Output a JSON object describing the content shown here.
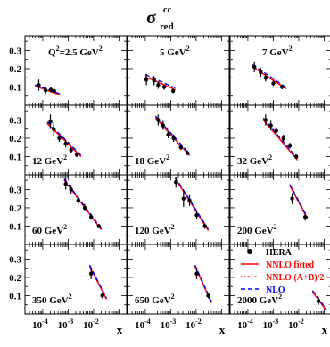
{
  "chart_data": {
    "type": "scatter",
    "title": "σ",
    "title_sup": "cc",
    "title_sub": "red",
    "xlabel": "x",
    "xscale": "log",
    "xlim": [
      2e-05,
      0.2
    ],
    "ylim": [
      0,
      0.38
    ],
    "grid": false,
    "legend_position": "bottom-right panel",
    "yticks": [
      0.1,
      0.2,
      0.3
    ],
    "ytick_labels": [
      "0.1",
      "0.2",
      "0.3"
    ],
    "xtick_labels": [
      {
        "base": "10",
        "exp": "-4",
        "value": 0.0001
      },
      {
        "base": "10",
        "exp": "-3",
        "value": 0.001
      },
      {
        "base": "10",
        "exp": "-2",
        "value": 0.01
      }
    ],
    "legend": [
      {
        "label": "HERA",
        "style": "marker",
        "color": "#000000"
      },
      {
        "label": "NNLO fitted",
        "style": "solid",
        "color": "#ff0000"
      },
      {
        "label": "NNLO (A+B)/2",
        "style": "dotted",
        "color": "#ff0000"
      },
      {
        "label": "NLO",
        "style": "dashed",
        "color": "#0000ff"
      }
    ],
    "panels": [
      {
        "q2_label": "Q",
        "q2_sup": "2",
        "q2_value": "=2.5 GeV",
        "q2_unit_sup": "2",
        "label_pos": "top",
        "points": [
          {
            "x": 7e-05,
            "y": 0.11,
            "e": 0.03
          },
          {
            "x": 0.00013,
            "y": 0.082,
            "e": 0.02
          },
          {
            "x": 0.00021,
            "y": 0.085,
            "e": 0.015
          },
          {
            "x": 0.00028,
            "y": 0.078,
            "e": 0.012
          }
        ],
        "curves": {
          "fitted": [
            [
              5e-05,
              0.105
            ],
            [
              0.0005,
              0.055
            ]
          ],
          "avg": [
            [
              5e-05,
              0.108
            ],
            [
              0.0005,
              0.058
            ]
          ],
          "nlo": [
            [
              5e-05,
              0.112
            ],
            [
              0.0005,
              0.062
            ]
          ]
        }
      },
      {
        "q2_label": "",
        "q2_sup": "",
        "q2_value": "5 GeV",
        "q2_unit_sup": "2",
        "label_pos": "top",
        "points": [
          {
            "x": 0.00011,
            "y": 0.14,
            "e": 0.03
          },
          {
            "x": 0.00022,
            "y": 0.135,
            "e": 0.025
          },
          {
            "x": 0.00032,
            "y": 0.11,
            "e": 0.02
          },
          {
            "x": 0.00055,
            "y": 0.1,
            "e": 0.015
          },
          {
            "x": 0.00125,
            "y": 0.078,
            "e": 0.012
          }
        ],
        "curves": {
          "fitted": [
            [
              0.0001,
              0.155
            ],
            [
              0.0015,
              0.085
            ]
          ],
          "avg": [
            [
              0.0001,
              0.158
            ],
            [
              0.0015,
              0.088
            ]
          ],
          "nlo": [
            [
              0.0001,
              0.168
            ],
            [
              0.0015,
              0.095
            ]
          ]
        }
      },
      {
        "q2_label": "",
        "q2_sup": "",
        "q2_value": "7 GeV",
        "q2_unit_sup": "2",
        "label_pos": "top",
        "points": [
          {
            "x": 0.00018,
            "y": 0.21,
            "e": 0.03
          },
          {
            "x": 0.00032,
            "y": 0.18,
            "e": 0.025
          },
          {
            "x": 0.0005,
            "y": 0.15,
            "e": 0.02
          },
          {
            "x": 0.001,
            "y": 0.12,
            "e": 0.015
          },
          {
            "x": 0.0022,
            "y": 0.1,
            "e": 0.012
          }
        ],
        "curves": {
          "fitted": [
            [
              0.00015,
              0.21
            ],
            [
              0.0032,
              0.09
            ]
          ],
          "avg": [
            [
              0.00015,
              0.213
            ],
            [
              0.0032,
              0.093
            ]
          ],
          "nlo": [
            [
              0.00015,
              0.222
            ],
            [
              0.0032,
              0.098
            ]
          ]
        }
      },
      {
        "q2_label": "",
        "q2_sup": "",
        "q2_value": "12 GeV",
        "q2_unit_sup": "2",
        "label_pos": "bottom",
        "points": [
          {
            "x": 0.0002,
            "y": 0.29,
            "e": 0.04
          },
          {
            "x": 0.00027,
            "y": 0.25,
            "e": 0.035
          },
          {
            "x": 0.00045,
            "y": 0.2,
            "e": 0.02
          },
          {
            "x": 0.0008,
            "y": 0.17,
            "e": 0.02
          },
          {
            "x": 0.0013,
            "y": 0.135,
            "e": 0.015
          },
          {
            "x": 0.0022,
            "y": 0.11,
            "e": 0.012
          }
        ],
        "curves": {
          "fitted": [
            [
              0.00015,
              0.28
            ],
            [
              0.0032,
              0.1
            ]
          ],
          "avg": [
            [
              0.00015,
              0.283
            ],
            [
              0.0032,
              0.102
            ]
          ],
          "nlo": [
            [
              0.00015,
              0.29
            ],
            [
              0.0032,
              0.108
            ]
          ]
        }
      },
      {
        "q2_label": "",
        "q2_sup": "",
        "q2_value": "18 GeV",
        "q2_unit_sup": "2",
        "label_pos": "bottom",
        "points": [
          {
            "x": 0.00032,
            "y": 0.3,
            "e": 0.03
          },
          {
            "x": 0.0005,
            "y": 0.27,
            "e": 0.025
          },
          {
            "x": 0.0008,
            "y": 0.22,
            "e": 0.02
          },
          {
            "x": 0.0013,
            "y": 0.2,
            "e": 0.02
          },
          {
            "x": 0.0025,
            "y": 0.15,
            "e": 0.015
          },
          {
            "x": 0.0045,
            "y": 0.12,
            "e": 0.012
          }
        ],
        "curves": {
          "fitted": [
            [
              0.00025,
              0.31
            ],
            [
              0.0055,
              0.105
            ]
          ],
          "avg": [
            [
              0.00025,
              0.313
            ],
            [
              0.0055,
              0.108
            ]
          ],
          "nlo": [
            [
              0.00025,
              0.322
            ],
            [
              0.0055,
              0.115
            ]
          ]
        }
      },
      {
        "q2_label": "",
        "q2_sup": "",
        "q2_value": "32 GeV",
        "q2_unit_sup": "2",
        "label_pos": "bottom",
        "points": [
          {
            "x": 0.0005,
            "y": 0.3,
            "e": 0.03
          },
          {
            "x": 0.0008,
            "y": 0.27,
            "e": 0.025
          },
          {
            "x": 0.0013,
            "y": 0.24,
            "e": 0.02
          },
          {
            "x": 0.0025,
            "y": 0.2,
            "e": 0.02
          },
          {
            "x": 0.0045,
            "y": 0.16,
            "e": 0.015
          },
          {
            "x": 0.008,
            "y": 0.1,
            "e": 0.012
          }
        ],
        "curves": {
          "fitted": [
            [
              0.0004,
              0.3
            ],
            [
              0.009,
              0.08
            ]
          ],
          "avg": [
            [
              0.0004,
              0.303
            ],
            [
              0.009,
              0.083
            ]
          ],
          "nlo": [
            [
              0.0004,
              0.31
            ],
            [
              0.009,
              0.09
            ]
          ]
        }
      },
      {
        "q2_label": "",
        "q2_sup": "",
        "q2_value": "60 GeV",
        "q2_unit_sup": "2",
        "label_pos": "bottom",
        "points": [
          {
            "x": 0.0008,
            "y": 0.33,
            "e": 0.03
          },
          {
            "x": 0.0013,
            "y": 0.3,
            "e": 0.025
          },
          {
            "x": 0.0025,
            "y": 0.24,
            "e": 0.02
          },
          {
            "x": 0.0045,
            "y": 0.2,
            "e": 0.02
          },
          {
            "x": 0.008,
            "y": 0.15,
            "e": 0.015
          },
          {
            "x": 0.016,
            "y": 0.1,
            "e": 0.012
          }
        ],
        "curves": {
          "fitted": [
            [
              0.0007,
              0.35
            ],
            [
              0.02,
              0.08
            ]
          ],
          "avg": [
            [
              0.0007,
              0.353
            ],
            [
              0.02,
              0.083
            ]
          ],
          "nlo": [
            [
              0.0007,
              0.358
            ],
            [
              0.02,
              0.088
            ]
          ]
        }
      },
      {
        "q2_label": "",
        "q2_sup": "",
        "q2_value": "120 GeV",
        "q2_unit_sup": "2",
        "label_pos": "bottom",
        "points": [
          {
            "x": 0.0016,
            "y": 0.34,
            "e": 0.03
          },
          {
            "x": 0.0032,
            "y": 0.25,
            "e": 0.045
          },
          {
            "x": 0.0055,
            "y": 0.24,
            "e": 0.03
          },
          {
            "x": 0.0105,
            "y": 0.16,
            "e": 0.02
          },
          {
            "x": 0.022,
            "y": 0.1,
            "e": 0.015
          }
        ],
        "curves": {
          "fitted": [
            [
              0.0015,
              0.36
            ],
            [
              0.03,
              0.075
            ]
          ],
          "avg": [
            [
              0.0015,
              0.363
            ],
            [
              0.03,
              0.078
            ]
          ],
          "nlo": [
            [
              0.0015,
              0.368
            ],
            [
              0.03,
              0.083
            ]
          ]
        }
      },
      {
        "q2_label": "",
        "q2_sup": "",
        "q2_value": "200 GeV",
        "q2_unit_sup": "2",
        "label_pos": "bottom",
        "points": [
          {
            "x": 0.0055,
            "y": 0.25,
            "e": 0.03
          },
          {
            "x": 0.018,
            "y": 0.15,
            "e": 0.02
          }
        ],
        "curves": {
          "fitted": [
            [
              0.0045,
              0.32
            ],
            [
              0.022,
              0.14
            ]
          ],
          "avg": [
            [
              0.0045,
              0.323
            ],
            [
              0.022,
              0.143
            ]
          ],
          "nlo": [
            [
              0.0045,
              0.328
            ],
            [
              0.022,
              0.148
            ]
          ]
        }
      },
      {
        "q2_label": "",
        "q2_sup": "",
        "q2_value": "350 GeV",
        "q2_unit_sup": "2",
        "label_pos": "bottom",
        "points": [
          {
            "x": 0.008,
            "y": 0.22,
            "e": 0.03
          },
          {
            "x": 0.022,
            "y": 0.1,
            "e": 0.015
          }
        ],
        "curves": {
          "fitted": [
            [
              0.007,
              0.26
            ],
            [
              0.032,
              0.08
            ]
          ],
          "avg": [
            [
              0.007,
              0.263
            ],
            [
              0.032,
              0.083
            ]
          ],
          "nlo": [
            [
              0.007,
              0.268
            ],
            [
              0.032,
              0.088
            ]
          ]
        }
      },
      {
        "q2_label": "",
        "q2_sup": "",
        "q2_value": "650 GeV",
        "q2_unit_sup": "2",
        "label_pos": "bottom",
        "points": [
          {
            "x": 0.0105,
            "y": 0.22,
            "e": 0.03
          },
          {
            "x": 0.03,
            "y": 0.1,
            "e": 0.015
          }
        ],
        "curves": {
          "fitted": [
            [
              0.009,
              0.26
            ],
            [
              0.04,
              0.06
            ]
          ],
          "avg": [
            [
              0.009,
              0.263
            ],
            [
              0.04,
              0.063
            ]
          ],
          "nlo": [
            [
              0.009,
              0.268
            ],
            [
              0.04,
              0.068
            ]
          ]
        }
      },
      {
        "q2_label": "",
        "q2_sup": "",
        "q2_value": "2000 GeV",
        "q2_unit_sup": "2",
        "label_pos": "bottom",
        "points": [
          {
            "x": 0.06,
            "y": 0.07,
            "e": 0.02
          }
        ],
        "curves": {
          "fitted": [
            [
              0.035,
              0.12
            ],
            [
              0.12,
              0.02
            ]
          ],
          "avg": [
            [
              0.035,
              0.123
            ],
            [
              0.12,
              0.023
            ]
          ],
          "nlo": [
            [
              0.035,
              0.128
            ],
            [
              0.12,
              0.028
            ]
          ]
        }
      }
    ]
  }
}
